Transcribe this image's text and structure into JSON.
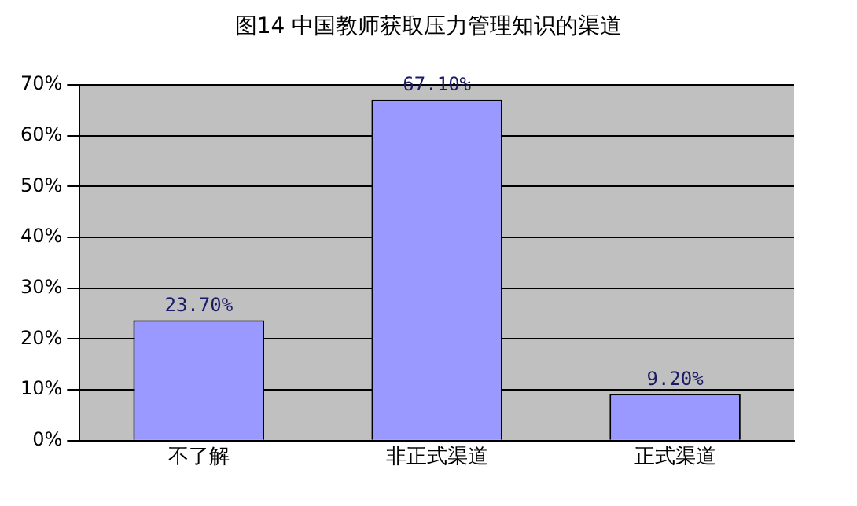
{
  "chart_data": {
    "type": "bar",
    "title": "图14 中国教师获取压力管理知识的渠道",
    "categories": [
      "不了解",
      "非正式渠道",
      "正式渠道"
    ],
    "values": [
      23.7,
      67.1,
      9.2
    ],
    "color": "#9999ff",
    "value_labels": [
      "23.70%",
      "67.10%",
      "9.20%"
    ],
    "ylim": [
      0,
      70
    ],
    "yticks": [
      {
        "value": 0,
        "label": "0%"
      },
      {
        "value": 10,
        "label": "10%"
      },
      {
        "value": 20,
        "label": "20%"
      },
      {
        "value": 30,
        "label": "30%"
      },
      {
        "value": 40,
        "label": "40%"
      },
      {
        "value": 50,
        "label": "50%"
      },
      {
        "value": 60,
        "label": "60%"
      },
      {
        "value": 70,
        "label": "70%"
      }
    ],
    "grid": "y"
  }
}
